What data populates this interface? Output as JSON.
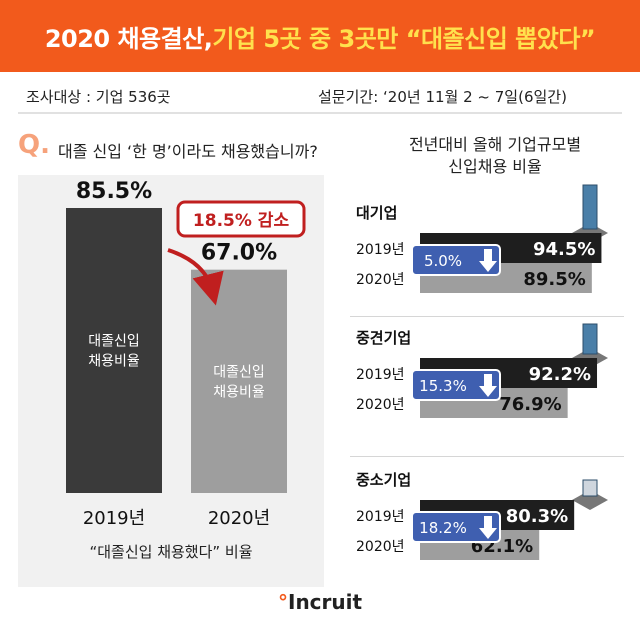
{
  "header": {
    "title_pre": "2020 채용결산, ",
    "title_hl": "기업 5곳 중 3곳만 “대졸신입 뽑았다”"
  },
  "meta": {
    "target": "조사대상 :  기업 536곳",
    "period": "설문기간: ‘20년 11월 2 ~ 7일(6일간)"
  },
  "question": {
    "mark": "Q.",
    "text": "대졸 신입 ‘한 명’이라도 채용했습니까?"
  },
  "right_title": {
    "line1": "전년대비 올해 기업규모별",
    "line2": "신입채용 비율"
  },
  "logo": {
    "prefix": "",
    "name": "Incruit"
  },
  "colors": {
    "brand_orange": "#f25a1c",
    "banner_highlight": "#ffe14d",
    "bar_2019": "#3a3a3a",
    "bar_2020": "#9e9e9e",
    "decrease_badge": "#3f5fb0",
    "decrease_callout": "#c01f1f"
  },
  "chart_data": [
    {
      "type": "bar",
      "categories": [
        "2019년",
        "2020년"
      ],
      "values": [
        85.5,
        67.0
      ],
      "value_labels": [
        "85.5%",
        "67.0%"
      ],
      "bar_labels": [
        "대졸신입\n채용비율",
        "대졸신입\n채용비율"
      ],
      "callout": "18.5% 감소",
      "xlabel": "“대졸신입 채용했다” 비율",
      "ylim": [
        0,
        100
      ],
      "grid": false
    },
    {
      "type": "bar",
      "orientation": "horizontal",
      "groups": [
        {
          "name": "대기업",
          "y2019": 94.5,
          "y2020": 89.5,
          "l2019": "94.5%",
          "l2020": "89.5%",
          "decrease": "5.0%"
        },
        {
          "name": "중견기업",
          "y2019": 92.2,
          "y2020": 76.9,
          "l2019": "92.2%",
          "l2020": "76.9%",
          "decrease": "15.3%"
        },
        {
          "name": "중소기업",
          "y2019": 80.3,
          "y2020": 62.1,
          "l2019": "80.3%",
          "l2020": "62.1%",
          "decrease": "18.2%"
        }
      ],
      "year_labels": [
        "2019년",
        "2020년"
      ],
      "grid": false
    }
  ]
}
